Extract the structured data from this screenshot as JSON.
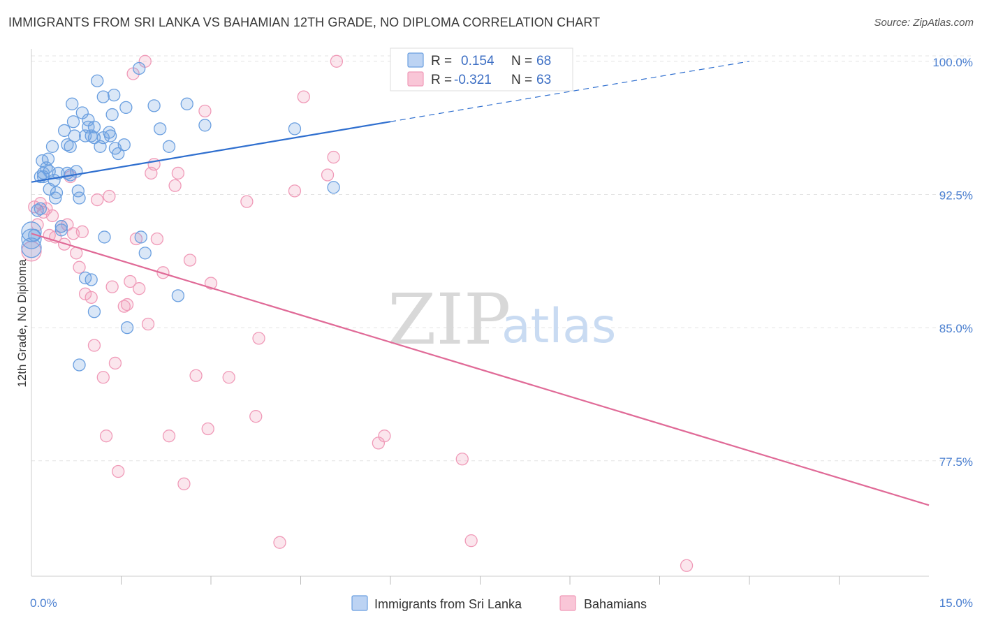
{
  "title": "IMMIGRANTS FROM SRI LANKA VS BAHAMIAN 12TH GRADE, NO DIPLOMA CORRELATION CHART",
  "source": "Source: ZipAtlas.com",
  "watermark": {
    "zip": "ZIP",
    "atlas": "atlas"
  },
  "colors": {
    "blue": "#6a9fe0",
    "blue_line": "#2f6fcf",
    "pink": "#f09ab8",
    "pink_line": "#e06a97"
  },
  "legend": {
    "r_label": "R =",
    "n_label": "N =",
    "rows": [
      {
        "series": "blue",
        "r": "0.154",
        "n": "68"
      },
      {
        "series": "pink",
        "r": "-0.321",
        "n": "63"
      }
    ]
  },
  "bottom_legend": [
    {
      "series": "blue",
      "label": "Immigrants from Sri Lanka"
    },
    {
      "series": "pink",
      "label": "Bahamians"
    }
  ],
  "chart_data": {
    "type": "scatter",
    "xlabel": "",
    "ylabel": "12th Grade, No Diploma",
    "xlim": [
      0,
      15
    ],
    "ylim": [
      71,
      100.7
    ],
    "x_tick_labels": [
      {
        "value": 0,
        "label": "0.0%"
      },
      {
        "value": 15,
        "label": "15.0%"
      }
    ],
    "x_minor_ticks": [
      1.5,
      3,
      4.5,
      6,
      7.5,
      9,
      10.5,
      12,
      13.5
    ],
    "y_ticks": [
      {
        "value": 100,
        "label": "100.0%"
      },
      {
        "value": 92.5,
        "label": "92.5%"
      },
      {
        "value": 85,
        "label": "85.0%"
      },
      {
        "value": 77.5,
        "label": "77.5%"
      }
    ],
    "grid": "dashed horizontal",
    "legend_position": "top-center",
    "series": [
      {
        "name": "Immigrants from Sri Lanka",
        "color": "blue",
        "trend": {
          "x0": 0,
          "y0": 93.2,
          "x1": 6,
          "y1": 96.6,
          "dashed_to_x": 12,
          "dashed_to_y": 100
        },
        "points": [
          [
            0.05,
            90.2
          ],
          [
            0.1,
            91.6
          ],
          [
            0.15,
            93.5
          ],
          [
            0.18,
            94.4
          ],
          [
            0.2,
            93.7
          ],
          [
            0.25,
            94.0
          ],
          [
            0.28,
            94.5
          ],
          [
            0.3,
            92.8
          ],
          [
            0.35,
            95.2
          ],
          [
            0.38,
            93.3
          ],
          [
            0.4,
            92.3
          ],
          [
            0.42,
            92.6
          ],
          [
            0.45,
            93.7
          ],
          [
            0.5,
            90.7
          ],
          [
            0.55,
            96.1
          ],
          [
            0.6,
            93.7
          ],
          [
            0.6,
            95.3
          ],
          [
            0.65,
            95.2
          ],
          [
            0.68,
            97.6
          ],
          [
            0.7,
            96.6
          ],
          [
            0.72,
            95.8
          ],
          [
            0.75,
            93.8
          ],
          [
            0.78,
            92.7
          ],
          [
            0.8,
            92.3
          ],
          [
            0.85,
            97.1
          ],
          [
            0.9,
            95.8
          ],
          [
            0.9,
            87.8
          ],
          [
            0.95,
            96.7
          ],
          [
            0.95,
            96.3
          ],
          [
            1.0,
            95.8
          ],
          [
            1.05,
            95.7
          ],
          [
            1.05,
            96.3
          ],
          [
            1.1,
            98.9
          ],
          [
            1.15,
            95.2
          ],
          [
            1.2,
            95.7
          ],
          [
            1.2,
            98.0
          ],
          [
            1.22,
            90.1
          ],
          [
            1.3,
            96.0
          ],
          [
            1.32,
            95.8
          ],
          [
            1.35,
            97.0
          ],
          [
            1.38,
            98.1
          ],
          [
            1.4,
            95.1
          ],
          [
            1.45,
            94.8
          ],
          [
            1.55,
            95.3
          ],
          [
            1.58,
            97.4
          ],
          [
            1.6,
            85.0
          ],
          [
            1.8,
            99.6
          ],
          [
            1.83,
            90.1
          ],
          [
            1.9,
            89.2
          ],
          [
            2.05,
            97.5
          ],
          [
            2.15,
            96.2
          ],
          [
            2.3,
            95.2
          ],
          [
            2.45,
            86.8
          ],
          [
            2.6,
            97.6
          ],
          [
            2.9,
            96.4
          ],
          [
            4.4,
            96.2
          ],
          [
            5.05,
            92.9
          ],
          [
            0.8,
            82.9
          ],
          [
            1.05,
            85.9
          ],
          [
            1.0,
            87.7
          ],
          [
            0.5,
            90.5
          ],
          [
            0.3,
            93.8
          ],
          [
            0.2,
            93.5
          ],
          [
            0.65,
            93.6
          ],
          [
            0.0,
            89.5
          ],
          [
            0.0,
            90.0
          ],
          [
            0.0,
            90.4
          ],
          [
            0.15,
            91.7
          ]
        ]
      },
      {
        "name": "Bahamians",
        "color": "pink",
        "trend": {
          "x0": 0,
          "y0": 90.3,
          "x1": 15,
          "y1": 75.0
        },
        "points": [
          [
            0.0,
            89.3
          ],
          [
            0.05,
            91.8
          ],
          [
            0.1,
            90.8
          ],
          [
            0.15,
            92.0
          ],
          [
            0.2,
            91.5
          ],
          [
            0.25,
            91.7
          ],
          [
            0.3,
            90.2
          ],
          [
            0.35,
            91.3
          ],
          [
            0.4,
            90.1
          ],
          [
            0.5,
            90.7
          ],
          [
            0.55,
            89.7
          ],
          [
            0.6,
            90.8
          ],
          [
            0.65,
            93.5
          ],
          [
            0.7,
            90.3
          ],
          [
            0.75,
            89.2
          ],
          [
            0.8,
            88.4
          ],
          [
            0.85,
            90.4
          ],
          [
            0.9,
            86.9
          ],
          [
            1.0,
            86.7
          ],
          [
            1.05,
            84.0
          ],
          [
            1.1,
            92.2
          ],
          [
            1.2,
            82.2
          ],
          [
            1.25,
            78.9
          ],
          [
            1.3,
            92.4
          ],
          [
            1.35,
            87.3
          ],
          [
            1.4,
            83.0
          ],
          [
            1.45,
            76.9
          ],
          [
            1.55,
            86.2
          ],
          [
            1.6,
            86.3
          ],
          [
            1.65,
            87.6
          ],
          [
            1.7,
            99.3
          ],
          [
            1.75,
            90.0
          ],
          [
            1.8,
            87.2
          ],
          [
            1.9,
            100.0
          ],
          [
            1.95,
            85.2
          ],
          [
            2.0,
            93.7
          ],
          [
            2.05,
            94.2
          ],
          [
            2.1,
            90.0
          ],
          [
            2.2,
            88.1
          ],
          [
            2.3,
            78.9
          ],
          [
            2.4,
            93.0
          ],
          [
            2.45,
            93.7
          ],
          [
            2.55,
            76.2
          ],
          [
            2.65,
            88.8
          ],
          [
            2.75,
            82.3
          ],
          [
            2.9,
            97.2
          ],
          [
            2.95,
            79.3
          ],
          [
            3.0,
            87.5
          ],
          [
            3.3,
            82.2
          ],
          [
            3.6,
            92.1
          ],
          [
            3.75,
            80.0
          ],
          [
            3.8,
            84.4
          ],
          [
            4.15,
            72.9
          ],
          [
            4.4,
            92.7
          ],
          [
            4.55,
            98.0
          ],
          [
            4.95,
            93.6
          ],
          [
            5.05,
            94.6
          ],
          [
            5.1,
            100.0
          ],
          [
            5.8,
            78.5
          ],
          [
            5.9,
            78.9
          ],
          [
            7.2,
            77.6
          ],
          [
            7.35,
            73.0
          ],
          [
            10.95,
            71.6
          ]
        ]
      }
    ]
  }
}
